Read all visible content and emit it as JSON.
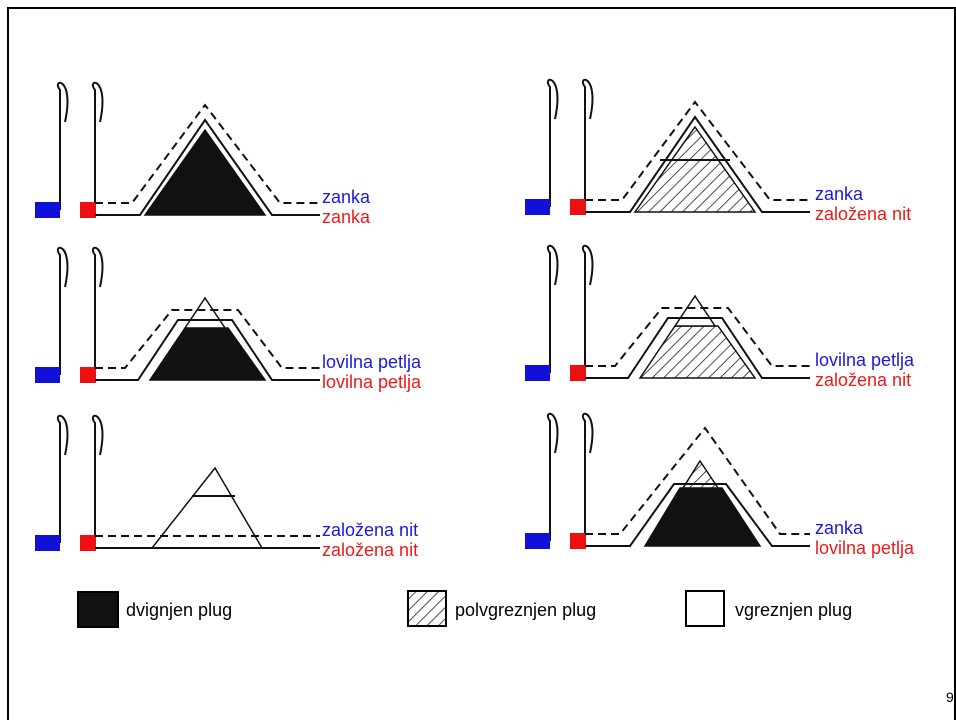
{
  "panels": [
    {
      "upper_label": "zanka",
      "lower_label": "zanka"
    },
    {
      "upper_label": "zanka",
      "lower_label": "založena nit"
    },
    {
      "upper_label": "lovilna petlja",
      "lower_label": "lovilna petlja"
    },
    {
      "upper_label": "lovilna petlja",
      "lower_label": "založena nit"
    },
    {
      "upper_label": "založena nit",
      "lower_label": "založena nit"
    },
    {
      "upper_label": "zanka",
      "lower_label": "lovilna petlja"
    }
  ],
  "legend": [
    "dvignjen plug",
    "polvgreznjen plug",
    "vgreznjen plug"
  ],
  "page_number": "9"
}
